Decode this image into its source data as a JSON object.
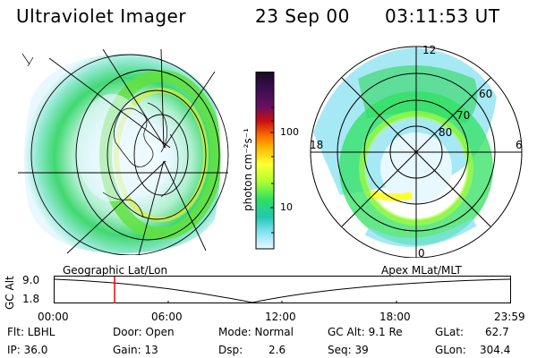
{
  "header": {
    "instrument": "Ultraviolet Imager",
    "date": "23 Sep 00",
    "time": "03:11:53 UT"
  },
  "left_panel": {
    "caption": "Geographic Lat/Lon"
  },
  "right_panel": {
    "caption": "Apex MLat/MLT",
    "mlt_labels": {
      "top": "12",
      "left": "18",
      "right": "6",
      "bottom": "0"
    },
    "lat_labels": [
      "60",
      "70",
      "80"
    ]
  },
  "colorbar": {
    "unit_label": "photon cm⁻²s⁻¹",
    "ticks": [
      "100",
      "10"
    ],
    "colors": [
      "#1a0a20",
      "#3a1050",
      "#6a1060",
      "#c81010",
      "#ff6a00",
      "#ffb000",
      "#ffff30",
      "#b0ff30",
      "#30e060",
      "#20c8b0",
      "#80e0f0",
      "#e8f8ff"
    ]
  },
  "altitude_plot": {
    "ylabel": "GC Alt",
    "yticks": [
      "9.0",
      "1.8"
    ],
    "xticks": [
      "00:00",
      "06:00",
      "12:00",
      "18:00",
      "23:59"
    ],
    "marker_color": "#ff0000"
  },
  "status": {
    "flt": "Flt: LBHL",
    "ip": "IP: 36.0",
    "door": "Door: Open",
    "gain": "Gain: 13",
    "mode": "Mode: Normal",
    "dsp_label": "Dsp:",
    "dsp_value": "2.6",
    "gcalt": "GC Alt: 9.1 Re",
    "seq": "Seq: 39",
    "glat_label": "GLat:",
    "glat_value": "62.7",
    "glon_label": "GLon:",
    "glon_value": "304.4"
  }
}
